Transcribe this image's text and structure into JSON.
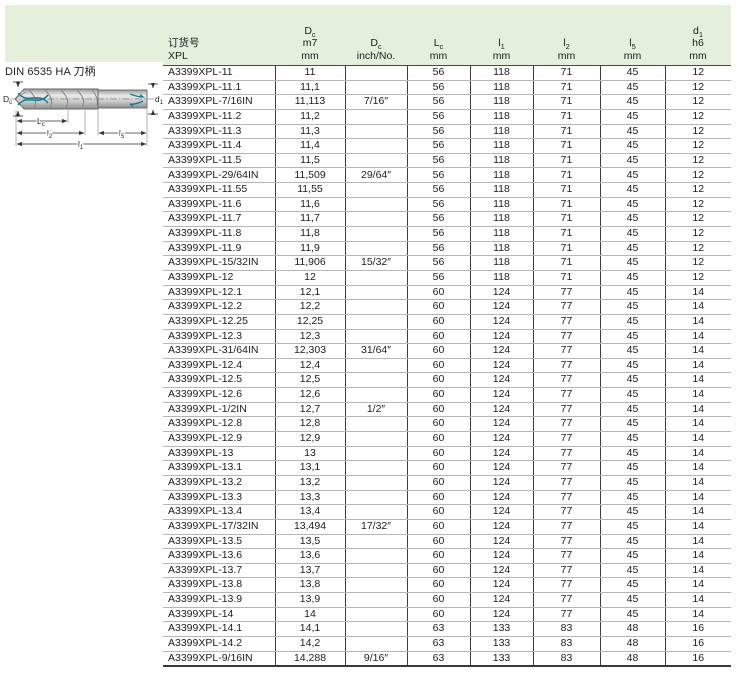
{
  "page": {
    "shank_label": "DIN 6535 HA 刀柄"
  },
  "diagram": {
    "labels": {
      "dc": {
        "t": "D",
        "s": "c"
      },
      "d1": {
        "t": "d",
        "s": "1"
      },
      "lc": {
        "t": "L",
        "s": "c"
      },
      "l2": {
        "t": "l",
        "s": "2"
      },
      "l5": {
        "t": "l",
        "s": "5"
      },
      "l1": {
        "t": "l",
        "s": "1"
      }
    },
    "colors": {
      "coolant_teal": "#0e7f93",
      "body_gray": "#c9c9c9",
      "outline": "#606060"
    }
  },
  "table": {
    "header_bg": "#e4efdc",
    "columns": [
      {
        "align": "left",
        "lines": [
          {
            "t": "订货号"
          },
          {
            "t": "XPL"
          }
        ]
      },
      {
        "align": "center",
        "lines": [
          {
            "t": "D",
            "s": "c"
          },
          {
            "t": "m7"
          },
          {
            "t": "mm"
          }
        ]
      },
      {
        "align": "center",
        "lines": [
          {
            "t": "D",
            "s": "c"
          },
          {
            "t": "inch/No."
          }
        ]
      },
      {
        "align": "center",
        "lines": [
          {
            "t": "L",
            "s": "c"
          },
          {
            "t": "mm"
          }
        ]
      },
      {
        "align": "center",
        "lines": [
          {
            "t": "l",
            "s": "1"
          },
          {
            "t": "mm"
          }
        ]
      },
      {
        "align": "center",
        "lines": [
          {
            "t": "l",
            "s": "2"
          },
          {
            "t": "mm"
          }
        ]
      },
      {
        "align": "center",
        "lines": [
          {
            "t": "l",
            "s": "5"
          },
          {
            "t": "mm"
          }
        ]
      },
      {
        "align": "center",
        "lines": [
          {
            "t": "d",
            "s": "1"
          },
          {
            "t": "h6"
          },
          {
            "t": "mm"
          }
        ]
      }
    ],
    "rows": [
      [
        "A3399XPL-11",
        "11",
        "",
        "56",
        "118",
        "71",
        "45",
        "12"
      ],
      [
        "A3399XPL-11.1",
        "11,1",
        "",
        "56",
        "118",
        "71",
        "45",
        "12"
      ],
      [
        "A3399XPL-7/16IN",
        "11,113",
        "7/16″",
        "56",
        "118",
        "71",
        "45",
        "12"
      ],
      [
        "A3399XPL-11.2",
        "11,2",
        "",
        "56",
        "118",
        "71",
        "45",
        "12"
      ],
      [
        "A3399XPL-11.3",
        "11,3",
        "",
        "56",
        "118",
        "71",
        "45",
        "12"
      ],
      [
        "A3399XPL-11.4",
        "11,4",
        "",
        "56",
        "118",
        "71",
        "45",
        "12"
      ],
      [
        "A3399XPL-11.5",
        "11,5",
        "",
        "56",
        "118",
        "71",
        "45",
        "12"
      ],
      [
        "A3399XPL-29/64IN",
        "11,509",
        "29/64″",
        "56",
        "118",
        "71",
        "45",
        "12"
      ],
      [
        "A3399XPL-11.55",
        "11,55",
        "",
        "56",
        "118",
        "71",
        "45",
        "12"
      ],
      [
        "A3399XPL-11.6",
        "11,6",
        "",
        "56",
        "118",
        "71",
        "45",
        "12"
      ],
      [
        "A3399XPL-11.7",
        "11,7",
        "",
        "56",
        "118",
        "71",
        "45",
        "12"
      ],
      [
        "A3399XPL-11.8",
        "11,8",
        "",
        "56",
        "118",
        "71",
        "45",
        "12"
      ],
      [
        "A3399XPL-11.9",
        "11,9",
        "",
        "56",
        "118",
        "71",
        "45",
        "12"
      ],
      [
        "A3399XPL-15/32IN",
        "11,906",
        "15/32″",
        "56",
        "118",
        "71",
        "45",
        "12"
      ],
      [
        "A3399XPL-12",
        "12",
        "",
        "56",
        "118",
        "71",
        "45",
        "12"
      ],
      [
        "A3399XPL-12.1",
        "12,1",
        "",
        "60",
        "124",
        "77",
        "45",
        "14"
      ],
      [
        "A3399XPL-12.2",
        "12,2",
        "",
        "60",
        "124",
        "77",
        "45",
        "14"
      ],
      [
        "A3399XPL-12.25",
        "12,25",
        "",
        "60",
        "124",
        "77",
        "45",
        "14"
      ],
      [
        "A3399XPL-12.3",
        "12,3",
        "",
        "60",
        "124",
        "77",
        "45",
        "14"
      ],
      [
        "A3399XPL-31/64IN",
        "12,303",
        "31/64″",
        "60",
        "124",
        "77",
        "45",
        "14"
      ],
      [
        "A3399XPL-12.4",
        "12,4",
        "",
        "60",
        "124",
        "77",
        "45",
        "14"
      ],
      [
        "A3399XPL-12.5",
        "12,5",
        "",
        "60",
        "124",
        "77",
        "45",
        "14"
      ],
      [
        "A3399XPL-12.6",
        "12,6",
        "",
        "60",
        "124",
        "77",
        "45",
        "14"
      ],
      [
        "A3399XPL-1/2IN",
        "12,7",
        "1/2″",
        "60",
        "124",
        "77",
        "45",
        "14"
      ],
      [
        "A3399XPL-12.8",
        "12,8",
        "",
        "60",
        "124",
        "77",
        "45",
        "14"
      ],
      [
        "A3399XPL-12.9",
        "12,9",
        "",
        "60",
        "124",
        "77",
        "45",
        "14"
      ],
      [
        "A3399XPL-13",
        "13",
        "",
        "60",
        "124",
        "77",
        "45",
        "14"
      ],
      [
        "A3399XPL-13.1",
        "13,1",
        "",
        "60",
        "124",
        "77",
        "45",
        "14"
      ],
      [
        "A3399XPL-13.2",
        "13,2",
        "",
        "60",
        "124",
        "77",
        "45",
        "14"
      ],
      [
        "A3399XPL-13.3",
        "13,3",
        "",
        "60",
        "124",
        "77",
        "45",
        "14"
      ],
      [
        "A3399XPL-13.4",
        "13,4",
        "",
        "60",
        "124",
        "77",
        "45",
        "14"
      ],
      [
        "A3399XPL-17/32IN",
        "13,494",
        "17/32″",
        "60",
        "124",
        "77",
        "45",
        "14"
      ],
      [
        "A3399XPL-13.5",
        "13,5",
        "",
        "60",
        "124",
        "77",
        "45",
        "14"
      ],
      [
        "A3399XPL-13.6",
        "13,6",
        "",
        "60",
        "124",
        "77",
        "45",
        "14"
      ],
      [
        "A3399XPL-13.7",
        "13,7",
        "",
        "60",
        "124",
        "77",
        "45",
        "14"
      ],
      [
        "A3399XPL-13.8",
        "13,8",
        "",
        "60",
        "124",
        "77",
        "45",
        "14"
      ],
      [
        "A3399XPL-13.9",
        "13,9",
        "",
        "60",
        "124",
        "77",
        "45",
        "14"
      ],
      [
        "A3399XPL-14",
        "14",
        "",
        "60",
        "124",
        "77",
        "45",
        "14"
      ],
      [
        "A3399XPL-14.1",
        "14,1",
        "",
        "63",
        "133",
        "83",
        "48",
        "16"
      ],
      [
        "A3399XPL-14.2",
        "14,2",
        "",
        "63",
        "133",
        "83",
        "48",
        "16"
      ],
      [
        "A3399XPL-9/16IN",
        "14,288",
        "9/16″",
        "63",
        "133",
        "83",
        "48",
        "16"
      ]
    ]
  }
}
